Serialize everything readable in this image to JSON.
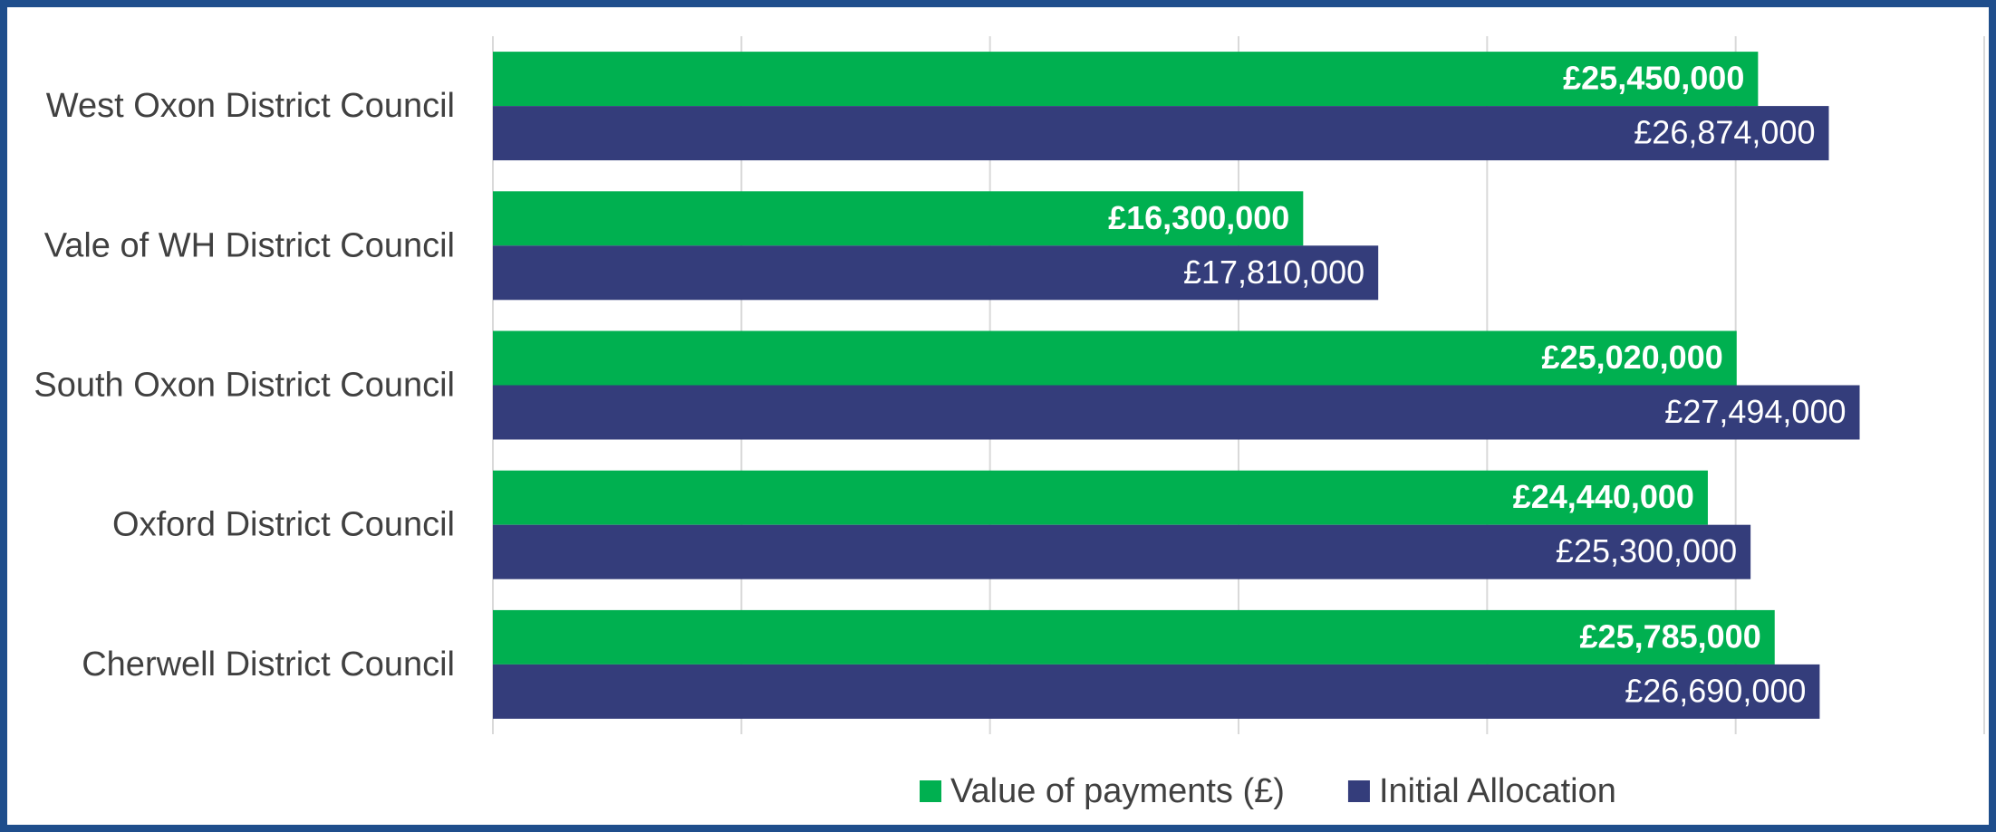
{
  "chart_data": {
    "type": "bar",
    "orientation": "horizontal",
    "categories": [
      "West Oxon District Council",
      "Vale of WH District Council",
      "South Oxon District Council",
      "Oxford District Council",
      "Cherwell District Council"
    ],
    "series": [
      {
        "name": "Value of payments (£)",
        "color": "#00b050",
        "values": [
          25450000,
          16300000,
          25020000,
          24440000,
          25785000
        ],
        "value_labels": [
          "£25,450,000",
          "£16,300,000",
          "£25,020,000",
          "£24,440,000",
          "£25,785,000"
        ]
      },
      {
        "name": "Initial Allocation",
        "color": "#343d7b",
        "values": [
          26874000,
          17810000,
          27494000,
          25300000,
          26690000
        ],
        "value_labels": [
          "£26,874,000",
          "£17,810,000",
          "£27,494,000",
          "£25,300,000",
          "£26,690,000"
        ]
      }
    ],
    "xlim": [
      0,
      30000000
    ],
    "xticks": [
      0,
      5000000,
      10000000,
      15000000,
      20000000,
      25000000,
      30000000
    ],
    "grid": true,
    "legend": "bottom"
  }
}
